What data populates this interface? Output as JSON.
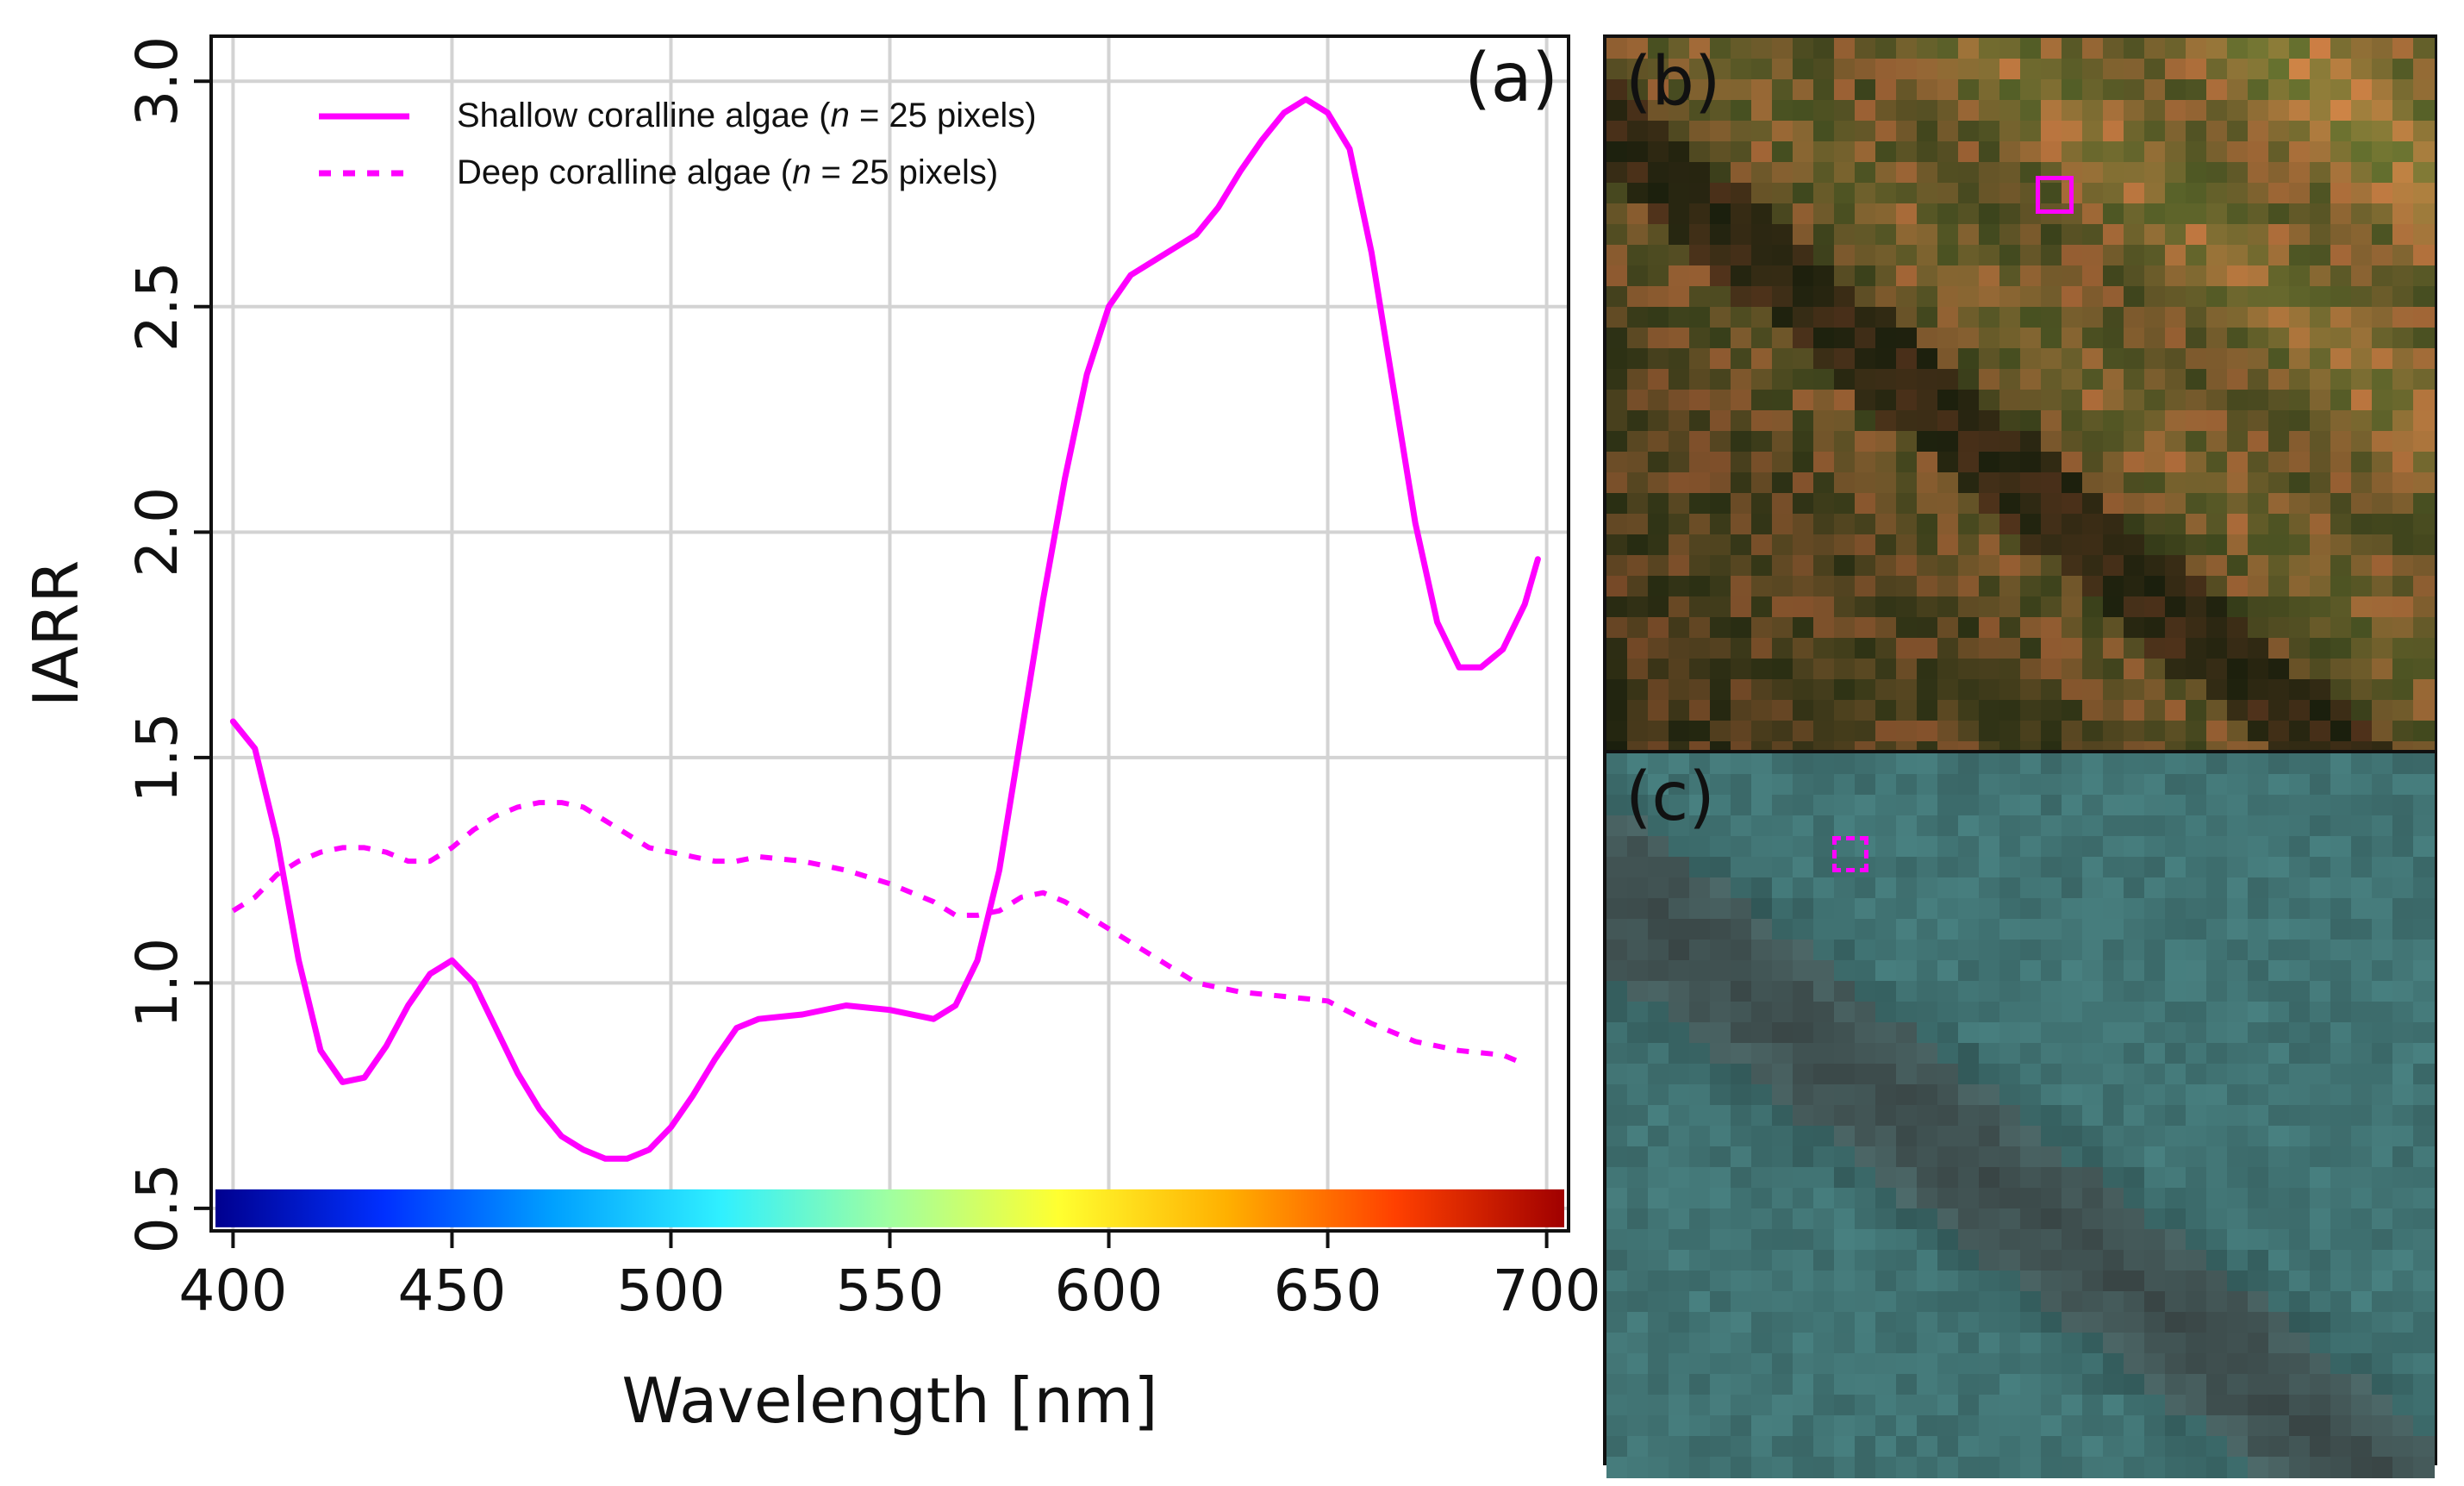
{
  "chart_data": {
    "type": "line",
    "panel_label": "(a)",
    "xlabel": "Wavelength [nm]",
    "ylabel": "IARR",
    "xlim": [
      395,
      705
    ],
    "ylim": [
      0.45,
      3.1
    ],
    "xticks": [
      400,
      450,
      500,
      550,
      600,
      650,
      700
    ],
    "yticks": [
      0.5,
      1.0,
      1.5,
      2.0,
      2.5,
      3.0
    ],
    "ytick_labels": [
      "0.5",
      "1.0",
      "1.5",
      "2.0",
      "2.5",
      "3.0"
    ],
    "grid": true,
    "legend_position": "top-left",
    "series": [
      {
        "name": "Shallow coralline algae",
        "name_n": "n",
        "name_suffix": " = 25 pixels)",
        "style": "solid",
        "color": "#ff00ff",
        "x": [
          400,
          405,
          410,
          415,
          420,
          425,
          430,
          435,
          440,
          445,
          450,
          455,
          460,
          465,
          470,
          475,
          480,
          485,
          490,
          495,
          500,
          505,
          510,
          515,
          520,
          530,
          540,
          550,
          560,
          565,
          570,
          575,
          580,
          585,
          590,
          595,
          600,
          605,
          610,
          615,
          620,
          625,
          630,
          635,
          640,
          645,
          650,
          655,
          660,
          665,
          670,
          675,
          680,
          685,
          690,
          695,
          698
        ],
        "y": [
          1.58,
          1.52,
          1.32,
          1.05,
          0.85,
          0.78,
          0.79,
          0.86,
          0.95,
          1.02,
          1.05,
          1.0,
          0.9,
          0.8,
          0.72,
          0.66,
          0.63,
          0.61,
          0.61,
          0.63,
          0.68,
          0.75,
          0.83,
          0.9,
          0.92,
          0.93,
          0.95,
          0.94,
          0.92,
          0.95,
          1.05,
          1.25,
          1.55,
          1.85,
          2.12,
          2.35,
          2.5,
          2.57,
          2.6,
          2.63,
          2.66,
          2.72,
          2.8,
          2.87,
          2.93,
          2.96,
          2.93,
          2.85,
          2.62,
          2.32,
          2.02,
          1.8,
          1.7,
          1.7,
          1.74,
          1.84,
          1.94
        ]
      },
      {
        "name": "Deep coralline algae",
        "name_n": "n",
        "name_suffix": " = 25 pixels)",
        "style": "dashed",
        "color": "#ff00ff",
        "x": [
          400,
          405,
          410,
          415,
          420,
          425,
          430,
          435,
          440,
          445,
          450,
          455,
          460,
          465,
          470,
          475,
          480,
          485,
          490,
          495,
          500,
          505,
          510,
          515,
          520,
          530,
          540,
          550,
          560,
          565,
          570,
          575,
          580,
          585,
          590,
          595,
          600,
          605,
          610,
          620,
          625,
          630,
          640,
          650,
          660,
          670,
          680,
          690,
          695
        ],
        "y": [
          1.16,
          1.19,
          1.24,
          1.27,
          1.29,
          1.3,
          1.3,
          1.29,
          1.27,
          1.27,
          1.3,
          1.34,
          1.37,
          1.39,
          1.4,
          1.4,
          1.39,
          1.36,
          1.33,
          1.3,
          1.29,
          1.28,
          1.27,
          1.27,
          1.28,
          1.27,
          1.25,
          1.22,
          1.18,
          1.15,
          1.15,
          1.16,
          1.19,
          1.2,
          1.18,
          1.15,
          1.12,
          1.09,
          1.06,
          1.0,
          0.99,
          0.98,
          0.97,
          0.96,
          0.91,
          0.87,
          0.85,
          0.84,
          0.82
        ]
      }
    ],
    "colorbar": {
      "x_range": [
        395,
        705
      ],
      "colors": [
        "#00008f",
        "#0030ff",
        "#00a0ff",
        "#30f0ff",
        "#a0ffa0",
        "#ffff30",
        "#ffb000",
        "#ff4000",
        "#a00000"
      ]
    }
  },
  "panels": {
    "b": {
      "label": "(b)"
    },
    "c": {
      "label": "(c)"
    }
  },
  "colors": {
    "accent": "#ff00ff",
    "grid": "#d3d3d3",
    "axis": "#111111"
  }
}
